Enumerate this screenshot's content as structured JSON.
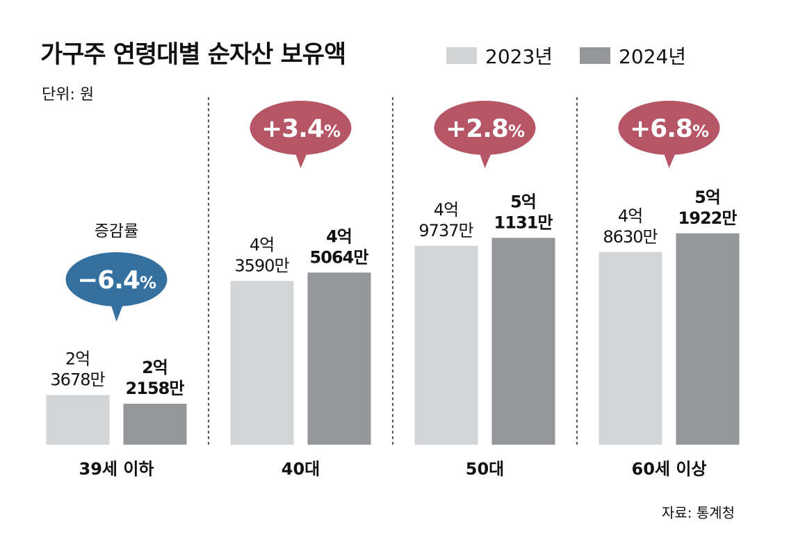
{
  "chart_data": {
    "type": "bar",
    "title": "가구주 연령대별 순자산 보유액",
    "unit_label": "단위: 원",
    "source": "자료: 통계청",
    "categories": [
      "39세 이하",
      "40대",
      "50대",
      "60세 이상"
    ],
    "series": [
      {
        "name": "2023년",
        "color": "#d3d4d6",
        "values": [
          23678,
          43590,
          49737,
          48630
        ],
        "labels": [
          [
            "2억",
            "3678만"
          ],
          [
            "4억",
            "3590만"
          ],
          [
            "4억",
            "9737만"
          ],
          [
            "4억",
            "8630만"
          ]
        ]
      },
      {
        "name": "2024년",
        "color": "#959699",
        "values": [
          22158,
          45064,
          51131,
          51922
        ],
        "labels": [
          [
            "2억",
            "2158만"
          ],
          [
            "4억",
            "5064만"
          ],
          [
            "5억",
            "1131만"
          ],
          [
            "5억",
            "1922만"
          ]
        ]
      }
    ],
    "value_unit": "만원",
    "ylim": [
      15000,
      53000
    ],
    "change_label": "증감률",
    "changes": [
      {
        "text": "-6.4",
        "pct": "%",
        "color": "#3471a0"
      },
      {
        "text": "+3.4",
        "pct": "%",
        "color": "#b55566"
      },
      {
        "text": "+2.8",
        "pct": "%",
        "color": "#b55566"
      },
      {
        "text": "+6.8",
        "pct": "%",
        "color": "#b55566"
      }
    ],
    "grid": false,
    "legend_position": "top-right"
  }
}
